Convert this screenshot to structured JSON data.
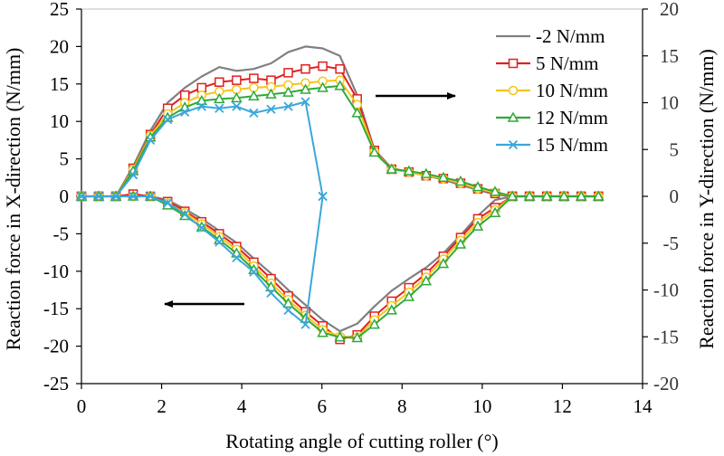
{
  "chart_data": {
    "type": "line",
    "title": "",
    "xlabel": "Rotating angle of cutting roller (°)",
    "ylabel": "Reaction force in X-direction (N/mm)",
    "ylabel_right": "Reaction force in Y-direction (N/mm)",
    "xlim": [
      0,
      14
    ],
    "ylim": [
      -25,
      25
    ],
    "ylim_right": [
      -20,
      20
    ],
    "x_ticks": [
      "0",
      "2",
      "4",
      "6",
      "8",
      "10",
      "12",
      "14"
    ],
    "y_ticks": [
      "25",
      "20",
      "15",
      "10",
      "5",
      "0",
      "-5",
      "-10",
      "-15",
      "-20",
      "-25"
    ],
    "y_ticks_right": [
      "20",
      "15",
      "10",
      "5",
      "0",
      "-5",
      "-10",
      "-15",
      "-20"
    ],
    "legend_position": "top-right",
    "annotations": [
      {
        "type": "arrow",
        "direction": "right",
        "meaning": "upper curves read on right Y axis"
      },
      {
        "type": "arrow",
        "direction": "left",
        "meaning": "lower curves read on left X axis"
      }
    ],
    "series": [
      {
        "name": "-2 N/mm",
        "color": "#808080",
        "marker": "none",
        "upper": [
          [
            0,
            0
          ],
          [
            0.43,
            0
          ],
          [
            0.86,
            0
          ],
          [
            1.29,
            3.2
          ],
          [
            1.72,
            7
          ],
          [
            2.15,
            10
          ],
          [
            2.58,
            11.6
          ],
          [
            3.0,
            12.8
          ],
          [
            3.44,
            13.8
          ],
          [
            3.87,
            13.4
          ],
          [
            4.3,
            13.6
          ],
          [
            4.73,
            14.2
          ],
          [
            5.16,
            15.4
          ],
          [
            5.59,
            16
          ],
          [
            6.02,
            15.8
          ],
          [
            6.45,
            15
          ],
          [
            6.88,
            10.8
          ],
          [
            7.31,
            5
          ],
          [
            7.74,
            3
          ],
          [
            8.17,
            2.6
          ],
          [
            8.6,
            2.2
          ],
          [
            9.03,
            1.8
          ],
          [
            9.46,
            1.2
          ],
          [
            9.89,
            0.7
          ],
          [
            10.32,
            0.2
          ],
          [
            10.75,
            0
          ],
          [
            11.18,
            0
          ],
          [
            11.61,
            0
          ],
          [
            12.04,
            0
          ],
          [
            12.47,
            0
          ],
          [
            12.9,
            0
          ]
        ],
        "lower": [
          [
            0,
            0
          ],
          [
            0.43,
            0
          ],
          [
            0.86,
            0
          ],
          [
            1.29,
            0
          ],
          [
            1.72,
            0
          ],
          [
            2.15,
            -0.5
          ],
          [
            2.58,
            -1.7
          ],
          [
            3.0,
            -3
          ],
          [
            3.44,
            -4.6
          ],
          [
            3.87,
            -6.2
          ],
          [
            4.3,
            -8.3
          ],
          [
            4.73,
            -10.3
          ],
          [
            5.16,
            -12.5
          ],
          [
            5.59,
            -14.5
          ],
          [
            6.02,
            -16.5
          ],
          [
            6.45,
            -18
          ],
          [
            6.88,
            -17
          ],
          [
            7.31,
            -14.7
          ],
          [
            7.74,
            -12.6
          ],
          [
            8.17,
            -11
          ],
          [
            8.6,
            -9.5
          ],
          [
            9.03,
            -7.6
          ],
          [
            9.46,
            -5.2
          ],
          [
            9.89,
            -2.6
          ],
          [
            10.32,
            -0.5
          ],
          [
            10.75,
            0
          ],
          [
            11.18,
            0
          ],
          [
            11.61,
            0
          ],
          [
            12.04,
            0
          ],
          [
            12.47,
            0
          ],
          [
            12.9,
            0
          ]
        ]
      },
      {
        "name": "5 N/mm",
        "color": "#E02020",
        "marker": "square",
        "upper": [
          [
            0,
            0
          ],
          [
            0.43,
            0
          ],
          [
            0.86,
            0
          ],
          [
            1.29,
            3
          ],
          [
            1.72,
            6.6
          ],
          [
            2.15,
            9.4
          ],
          [
            2.58,
            10.8
          ],
          [
            3.0,
            11.6
          ],
          [
            3.44,
            12.2
          ],
          [
            3.87,
            12.4
          ],
          [
            4.3,
            12.6
          ],
          [
            4.73,
            12.4
          ],
          [
            5.16,
            13.2
          ],
          [
            5.59,
            13.6
          ],
          [
            6.02,
            13.9
          ],
          [
            6.45,
            13.6
          ],
          [
            6.88,
            10.4
          ],
          [
            7.31,
            4.9
          ],
          [
            7.74,
            2.9
          ],
          [
            8.17,
            2.6
          ],
          [
            8.6,
            2.2
          ],
          [
            9.03,
            1.9
          ],
          [
            9.46,
            1.4
          ],
          [
            9.89,
            0.8
          ],
          [
            10.32,
            0.3
          ],
          [
            10.75,
            0
          ],
          [
            11.18,
            0
          ],
          [
            11.61,
            0
          ],
          [
            12.04,
            0
          ],
          [
            12.47,
            0
          ],
          [
            12.9,
            0
          ]
        ],
        "lower": [
          [
            0,
            0
          ],
          [
            0.43,
            0
          ],
          [
            0.86,
            0
          ],
          [
            1.29,
            0.3
          ],
          [
            1.72,
            0
          ],
          [
            2.15,
            -0.7
          ],
          [
            2.58,
            -2
          ],
          [
            3.0,
            -3.4
          ],
          [
            3.44,
            -5
          ],
          [
            3.87,
            -6.7
          ],
          [
            4.3,
            -8.8
          ],
          [
            4.73,
            -11
          ],
          [
            5.16,
            -13.3
          ],
          [
            5.59,
            -15.4
          ],
          [
            6.02,
            -17.3
          ],
          [
            6.45,
            -19.1
          ],
          [
            6.88,
            -18.5
          ],
          [
            7.31,
            -16
          ],
          [
            7.74,
            -14
          ],
          [
            8.17,
            -12.2
          ],
          [
            8.6,
            -10.3
          ],
          [
            9.03,
            -8
          ],
          [
            9.46,
            -5.5
          ],
          [
            9.89,
            -3
          ],
          [
            10.32,
            -1.5
          ],
          [
            10.75,
            0
          ],
          [
            11.18,
            0
          ],
          [
            11.61,
            0
          ],
          [
            12.04,
            0
          ],
          [
            12.47,
            0
          ],
          [
            12.9,
            0
          ]
        ]
      },
      {
        "name": "10 N/mm",
        "color": "#F5C518",
        "marker": "circle",
        "upper": [
          [
            0,
            0
          ],
          [
            0.43,
            0
          ],
          [
            0.86,
            0
          ],
          [
            1.29,
            2.9
          ],
          [
            1.72,
            6.5
          ],
          [
            2.15,
            8.8
          ],
          [
            2.58,
            10
          ],
          [
            3.0,
            10.8
          ],
          [
            3.44,
            11.2
          ],
          [
            3.87,
            11.4
          ],
          [
            4.3,
            11.6
          ],
          [
            4.73,
            11.7
          ],
          [
            5.16,
            11.9
          ],
          [
            5.59,
            12.1
          ],
          [
            6.02,
            12.3
          ],
          [
            6.45,
            12.4
          ],
          [
            6.88,
            9.8
          ],
          [
            7.31,
            4.8
          ],
          [
            7.74,
            2.9
          ],
          [
            8.17,
            2.6
          ],
          [
            8.6,
            2.2
          ],
          [
            9.03,
            1.9
          ],
          [
            9.46,
            1.4
          ],
          [
            9.89,
            0.8
          ],
          [
            10.32,
            0.4
          ],
          [
            10.75,
            0
          ],
          [
            11.18,
            0
          ],
          [
            11.61,
            0
          ],
          [
            12.04,
            0
          ],
          [
            12.47,
            0
          ],
          [
            12.9,
            0
          ]
        ],
        "lower": [
          [
            0,
            0
          ],
          [
            0.43,
            0
          ],
          [
            0.86,
            0
          ],
          [
            1.29,
            0
          ],
          [
            1.72,
            0
          ],
          [
            2.15,
            -0.9
          ],
          [
            2.58,
            -2.2
          ],
          [
            3.0,
            -3.7
          ],
          [
            3.44,
            -5.4
          ],
          [
            3.87,
            -7.1
          ],
          [
            4.3,
            -9.3
          ],
          [
            4.73,
            -11.6
          ],
          [
            5.16,
            -13.8
          ],
          [
            5.59,
            -15.9
          ],
          [
            6.02,
            -17.8
          ],
          [
            6.45,
            -18.7
          ],
          [
            6.88,
            -18.8
          ],
          [
            7.31,
            -16.5
          ],
          [
            7.74,
            -14.6
          ],
          [
            8.17,
            -12.8
          ],
          [
            8.6,
            -10.8
          ],
          [
            9.03,
            -8.4
          ],
          [
            9.46,
            -5.9
          ],
          [
            9.89,
            -3.5
          ],
          [
            10.32,
            -1.8
          ],
          [
            10.75,
            0
          ],
          [
            11.18,
            0
          ],
          [
            11.61,
            0
          ],
          [
            12.04,
            0
          ],
          [
            12.47,
            0
          ],
          [
            12.9,
            0
          ]
        ]
      },
      {
        "name": "12 N/mm",
        "color": "#2EAA3A",
        "marker": "triangle",
        "upper": [
          [
            0,
            0
          ],
          [
            0.43,
            0
          ],
          [
            0.86,
            0
          ],
          [
            1.29,
            2.7
          ],
          [
            1.72,
            6.3
          ],
          [
            2.15,
            8.4
          ],
          [
            2.58,
            9.5
          ],
          [
            3.0,
            10.2
          ],
          [
            3.44,
            10.4
          ],
          [
            3.87,
            10.5
          ],
          [
            4.3,
            10.7
          ],
          [
            4.73,
            10.9
          ],
          [
            5.16,
            11.1
          ],
          [
            5.59,
            11.4
          ],
          [
            6.02,
            11.6
          ],
          [
            6.45,
            11.8
          ],
          [
            6.88,
            8.9
          ],
          [
            7.31,
            4.7
          ],
          [
            7.74,
            2.9
          ],
          [
            8.17,
            2.7
          ],
          [
            8.6,
            2.4
          ],
          [
            9.03,
            2.0
          ],
          [
            9.46,
            1.6
          ],
          [
            9.89,
            1.0
          ],
          [
            10.32,
            0.5
          ],
          [
            10.75,
            0
          ],
          [
            11.18,
            0
          ],
          [
            11.61,
            0
          ],
          [
            12.04,
            0
          ],
          [
            12.47,
            0
          ],
          [
            12.9,
            0
          ]
        ],
        "lower": [
          [
            0,
            0
          ],
          [
            0.43,
            0
          ],
          [
            0.86,
            0
          ],
          [
            1.29,
            0
          ],
          [
            1.72,
            0
          ],
          [
            2.15,
            -1.2
          ],
          [
            2.58,
            -2.6
          ],
          [
            3.0,
            -4.1
          ],
          [
            3.44,
            -5.8
          ],
          [
            3.87,
            -7.6
          ],
          [
            4.3,
            -9.8
          ],
          [
            4.73,
            -12.1
          ],
          [
            5.16,
            -14.3
          ],
          [
            5.59,
            -16.3
          ],
          [
            6.02,
            -18.2
          ],
          [
            6.45,
            -18.8
          ],
          [
            6.88,
            -18.9
          ],
          [
            7.31,
            -17.1
          ],
          [
            7.74,
            -15.2
          ],
          [
            8.17,
            -13.4
          ],
          [
            8.6,
            -11.3
          ],
          [
            9.03,
            -9
          ],
          [
            9.46,
            -6.4
          ],
          [
            9.89,
            -4
          ],
          [
            10.32,
            -2.2
          ],
          [
            10.75,
            0
          ],
          [
            11.18,
            0
          ],
          [
            11.61,
            0
          ],
          [
            12.04,
            0
          ],
          [
            12.47,
            0
          ],
          [
            12.9,
            0
          ]
        ]
      },
      {
        "name": "15 N/mm",
        "color": "#3BA7DB",
        "marker": "x",
        "upper": [
          [
            0,
            0
          ],
          [
            0.43,
            0
          ],
          [
            0.86,
            0
          ],
          [
            1.29,
            2.3
          ],
          [
            1.72,
            6
          ],
          [
            2.15,
            8.2
          ],
          [
            2.58,
            9
          ],
          [
            3.0,
            9.6
          ],
          [
            3.44,
            9.4
          ],
          [
            3.87,
            9.6
          ],
          [
            4.3,
            8.9
          ],
          [
            4.73,
            9.3
          ],
          [
            5.16,
            9.6
          ],
          [
            5.59,
            10.1
          ],
          [
            6.02,
            0
          ]
        ],
        "lower": [
          [
            0,
            0
          ],
          [
            0.43,
            0
          ],
          [
            0.86,
            0
          ],
          [
            1.29,
            0
          ],
          [
            1.72,
            0
          ],
          [
            2.15,
            -0.9
          ],
          [
            2.58,
            -2.4
          ],
          [
            3.0,
            -4.2
          ],
          [
            3.44,
            -6.1
          ],
          [
            3.87,
            -8.2
          ],
          [
            4.3,
            -10.1
          ],
          [
            4.73,
            -12.9
          ],
          [
            5.16,
            -15.2
          ],
          [
            5.59,
            -17.1
          ],
          [
            6.02,
            0
          ]
        ]
      }
    ]
  }
}
